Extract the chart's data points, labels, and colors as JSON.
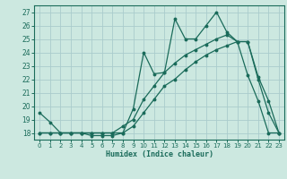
{
  "xlabel": "Humidex (Indice chaleur)",
  "background_color": "#cce8e0",
  "grid_color": "#aacccc",
  "line_color": "#1a6b5a",
  "xlim": [
    -0.5,
    23.5
  ],
  "ylim": [
    17.5,
    27.5
  ],
  "xticks": [
    0,
    1,
    2,
    3,
    4,
    5,
    6,
    7,
    8,
    9,
    10,
    11,
    12,
    13,
    14,
    15,
    16,
    17,
    18,
    19,
    20,
    21,
    22,
    23
  ],
  "yticks": [
    18,
    19,
    20,
    21,
    22,
    23,
    24,
    25,
    26,
    27
  ],
  "series1_x": [
    0,
    1,
    2,
    3,
    4,
    5,
    6,
    7,
    8,
    9,
    10,
    11,
    12,
    13,
    14,
    15,
    16,
    17,
    18,
    19,
    20,
    21,
    22,
    23
  ],
  "series1_y": [
    19.5,
    18.8,
    18.0,
    18.0,
    18.0,
    17.8,
    17.8,
    17.8,
    18.0,
    19.8,
    24.0,
    22.4,
    22.5,
    26.5,
    25.0,
    25.0,
    26.0,
    27.0,
    25.5,
    24.8,
    22.3,
    20.4,
    18.0,
    18.0
  ],
  "series2_x": [
    0,
    1,
    2,
    3,
    4,
    5,
    6,
    7,
    8,
    9,
    10,
    11,
    12,
    13,
    14,
    15,
    16,
    17,
    18,
    19,
    20,
    21,
    22,
    23
  ],
  "series2_y": [
    18.0,
    18.0,
    18.0,
    18.0,
    18.0,
    18.0,
    18.0,
    18.0,
    18.5,
    19.0,
    20.5,
    21.5,
    22.5,
    23.2,
    23.8,
    24.2,
    24.6,
    25.0,
    25.3,
    24.8,
    24.8,
    22.2,
    20.4,
    18.0
  ],
  "series3_x": [
    0,
    1,
    2,
    3,
    4,
    5,
    6,
    7,
    8,
    9,
    10,
    11,
    12,
    13,
    14,
    15,
    16,
    17,
    18,
    19,
    20,
    21,
    22,
    23
  ],
  "series3_y": [
    18.0,
    18.0,
    18.0,
    18.0,
    18.0,
    18.0,
    18.0,
    18.0,
    18.0,
    18.5,
    19.5,
    20.5,
    21.5,
    22.0,
    22.7,
    23.3,
    23.8,
    24.2,
    24.5,
    24.8,
    24.8,
    22.0,
    19.5,
    18.0
  ]
}
